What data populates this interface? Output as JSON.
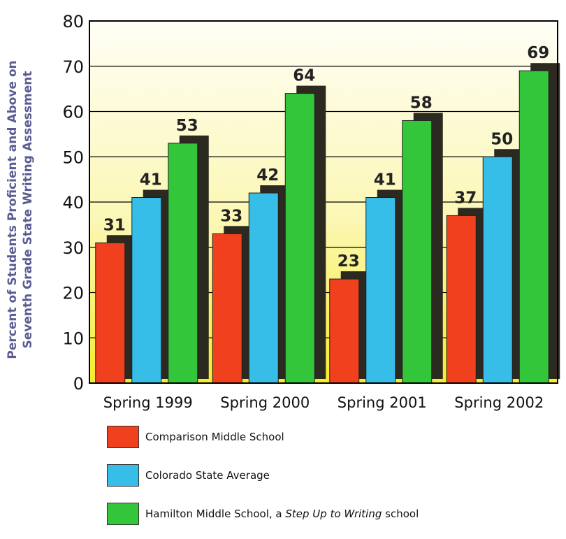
{
  "chart_data": {
    "type": "bar",
    "ylabel_lines": [
      "Percent of Students Proficient and Above on",
      "Seventh Grade State Writing Assessment"
    ],
    "ylim": [
      0,
      80
    ],
    "yticks": [
      0,
      10,
      20,
      30,
      40,
      50,
      60,
      70,
      80
    ],
    "grid": true,
    "categories": [
      "Spring 1999",
      "Spring 2000",
      "Spring 2001",
      "Spring 2002"
    ],
    "series": [
      {
        "name": "Comparison Middle School",
        "color": "#f0401e",
        "values": [
          31,
          33,
          23,
          37
        ]
      },
      {
        "name": "Colorado State Average",
        "color": "#36bde8",
        "values": [
          41,
          42,
          41,
          50
        ]
      },
      {
        "name": "Hamilton Middle School, a Step Up to Writing school",
        "color": "#33c63a",
        "values": [
          53,
          64,
          58,
          69
        ]
      }
    ],
    "legend_position": "bottom-left"
  },
  "legend": [
    {
      "prefix": "Comparison Middle School",
      "emphasis": "",
      "suffix": ""
    },
    {
      "prefix": "Colorado State Average",
      "emphasis": "",
      "suffix": ""
    },
    {
      "prefix": "Hamilton Middle School, a ",
      "emphasis": "Step Up to Writing",
      "suffix": " school"
    }
  ],
  "colors": {
    "background_top": "#fffef6",
    "background_bottom": "#f7ec2a",
    "shadow": "#2c2a20"
  }
}
